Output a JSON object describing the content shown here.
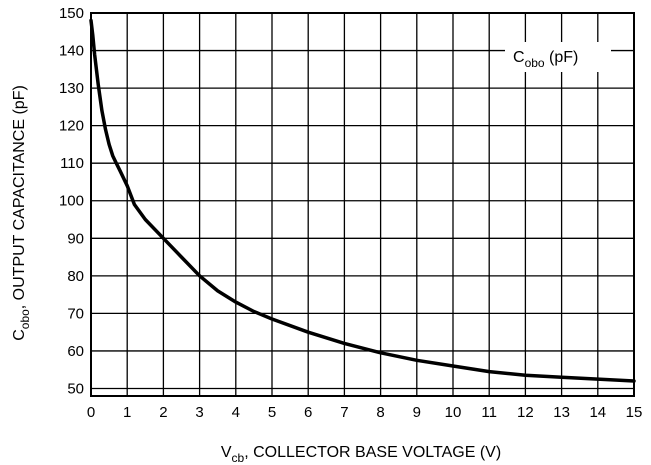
{
  "chart_data": {
    "type": "line",
    "xlabel": {
      "main": "V",
      "sub": "cb",
      "rest": ", COLLECTOR BASE VOLTAGE (V)"
    },
    "ylabel": {
      "main": "C",
      "sub": "obo",
      "rest": ", OUTPUT CAPACITANCE (pF)"
    },
    "xlim": [
      0,
      15
    ],
    "ylim": [
      48,
      150
    ],
    "xticks": [
      "0",
      "1",
      "2",
      "3",
      "4",
      "5",
      "6",
      "7",
      "8",
      "9",
      "10",
      "11",
      "12",
      "13",
      "14",
      "15"
    ],
    "yticks": [
      "50",
      "60",
      "70",
      "80",
      "90",
      "100",
      "110",
      "120",
      "130",
      "140",
      "150"
    ],
    "grid": true,
    "legend_placement": "top-right",
    "series": [
      {
        "legend": {
          "main": "C",
          "sub": "obo",
          "rest": " (pF)"
        },
        "color": "#000000",
        "x": [
          0,
          0.05,
          0.1,
          0.2,
          0.3,
          0.4,
          0.5,
          0.6,
          0.7,
          0.8,
          1.0,
          1.2,
          1.5,
          2.0,
          2.5,
          3.0,
          3.5,
          4.0,
          4.5,
          5.0,
          6.0,
          7.0,
          8.0,
          9.0,
          10.0,
          11.0,
          12.0,
          13.0,
          14.0,
          15.0
        ],
        "y": [
          148,
          144,
          139,
          131,
          124,
          119,
          115,
          112,
          110,
          108,
          104,
          99,
          95,
          90,
          85,
          80,
          76,
          73,
          70.5,
          68.5,
          65,
          62,
          59.5,
          57.5,
          56,
          54.5,
          53.5,
          53,
          52.5,
          52
        ]
      }
    ]
  }
}
